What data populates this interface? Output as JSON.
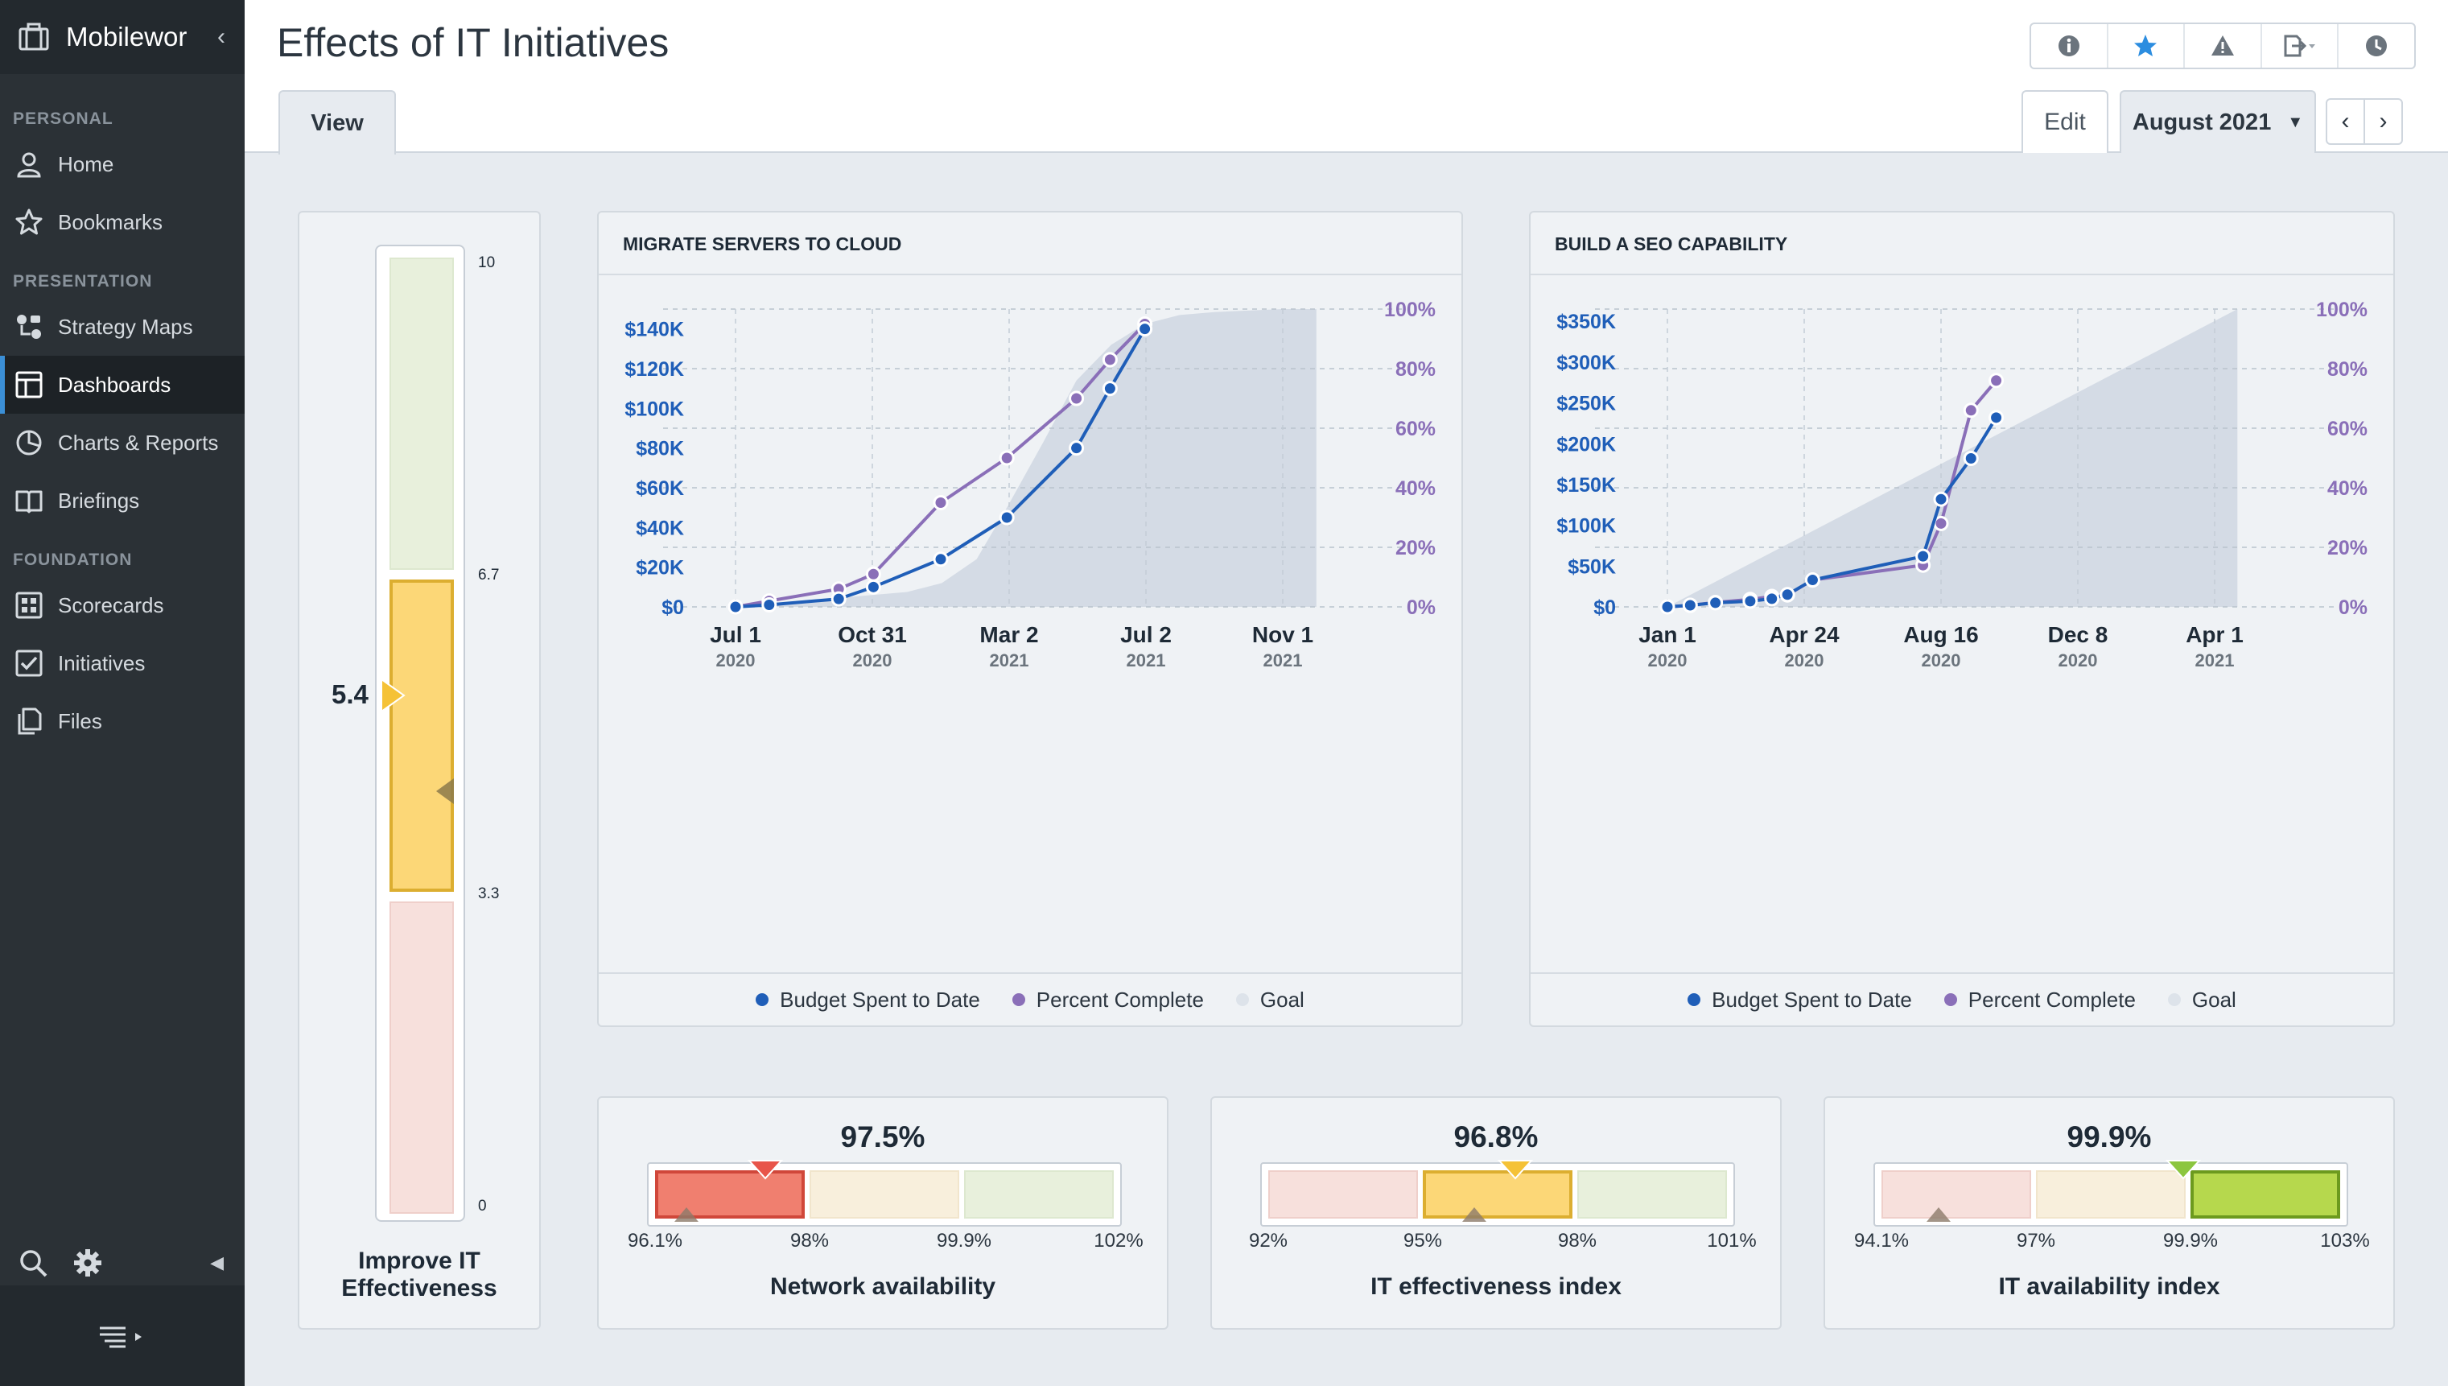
{
  "app": {
    "title": "Mobilewor"
  },
  "sidebar": {
    "sections": {
      "personal": "PERSONAL",
      "presentation": "PRESENTATION",
      "foundation": "FOUNDATION"
    },
    "items": [
      {
        "label": "Home",
        "icon": "user-icon"
      },
      {
        "label": "Bookmarks",
        "icon": "star-icon"
      },
      {
        "label": "Strategy Maps",
        "icon": "strategy-map-icon"
      },
      {
        "label": "Dashboards",
        "icon": "dashboard-icon",
        "active": true
      },
      {
        "label": "Charts & Reports",
        "icon": "pie-chart-icon"
      },
      {
        "label": "Briefings",
        "icon": "book-icon"
      },
      {
        "label": "Scorecards",
        "icon": "scorecard-icon"
      },
      {
        "label": "Initiatives",
        "icon": "checkbox-icon"
      },
      {
        "label": "Files",
        "icon": "files-icon"
      }
    ]
  },
  "header": {
    "title": "Effects of IT Initiatives",
    "tab_view": "View",
    "edit": "Edit",
    "period": "August 2021"
  },
  "colors": {
    "budget": "#1f5eb8",
    "percent": "#8a6fb8",
    "goal": "#d3dbe6",
    "red": "#f07f6f",
    "yellow": "#fcd777",
    "green": "#b6d84d"
  },
  "vertical_gauge": {
    "value": "5.4",
    "value_num": 5.4,
    "target_num": 4.4,
    "ticks": [
      "10",
      "6.7",
      "3.3",
      "0"
    ],
    "label_line1": "Improve IT",
    "label_line2": "Effectiveness"
  },
  "chart_data": [
    {
      "type": "line",
      "title": "MIGRATE SERVERS TO CLOUD",
      "x_ticks": [
        {
          "label": "Jul 1",
          "year": "2020"
        },
        {
          "label": "Oct 31",
          "year": "2020"
        },
        {
          "label": "Mar 2",
          "year": "2021"
        },
        {
          "label": "Jul 2",
          "year": "2021"
        },
        {
          "label": "Nov 1",
          "year": "2021"
        }
      ],
      "y_left_ticks": [
        "$0",
        "$20K",
        "$40K",
        "$60K",
        "$80K",
        "$100K",
        "$120K",
        "$140K"
      ],
      "y_right_ticks": [
        "0%",
        "20%",
        "40%",
        "60%",
        "80%",
        "100%"
      ],
      "ylim_left": [
        0,
        150000
      ],
      "ylim_right": [
        0,
        100
      ],
      "series": [
        {
          "name": "Budget Spent to Date",
          "axis": "left",
          "x": [
            "2020-07-01",
            "2020-07-31",
            "2020-10-01",
            "2020-11-01",
            "2020-12-31",
            "2021-02-28",
            "2021-05-01",
            "2021-05-31",
            "2021-07-01"
          ],
          "values": [
            0,
            1000,
            4000,
            10000,
            24000,
            45000,
            80000,
            110000,
            140000
          ]
        },
        {
          "name": "Percent Complete",
          "axis": "right",
          "x": [
            "2020-07-01",
            "2020-07-31",
            "2020-10-01",
            "2020-11-01",
            "2020-12-31",
            "2021-02-28",
            "2021-05-01",
            "2021-05-31",
            "2021-07-01"
          ],
          "values": [
            0,
            2,
            6,
            11,
            35,
            50,
            70,
            83,
            95
          ]
        },
        {
          "name": "Goal",
          "axis": "right",
          "x": [
            "2020-07-01",
            "2020-12-01",
            "2021-01-01",
            "2021-02-01",
            "2021-03-01",
            "2021-04-01",
            "2021-05-01",
            "2021-06-01",
            "2021-07-01",
            "2021-08-01",
            "2021-09-01",
            "2021-10-01",
            "2021-11-01",
            "2021-12-01"
          ],
          "values": [
            0,
            5,
            8,
            16,
            34,
            55,
            76,
            88,
            95,
            98,
            99,
            99.5,
            100,
            100
          ]
        }
      ]
    },
    {
      "type": "line",
      "title": "BUILD A SEO CAPABILITY",
      "x_ticks": [
        {
          "label": "Jan 1",
          "year": "2020"
        },
        {
          "label": "Apr 24",
          "year": "2020"
        },
        {
          "label": "Aug 16",
          "year": "2020"
        },
        {
          "label": "Dec 8",
          "year": "2020"
        },
        {
          "label": "Apr 1",
          "year": "2021"
        }
      ],
      "y_left_ticks": [
        "$0",
        "$50K",
        "$100K",
        "$150K",
        "$200K",
        "$250K",
        "$300K",
        "$350K"
      ],
      "y_right_ticks": [
        "0%",
        "20%",
        "40%",
        "60%",
        "80%",
        "100%"
      ],
      "ylim_left": [
        0,
        365000
      ],
      "ylim_right": [
        0,
        100
      ],
      "series": [
        {
          "name": "Budget Spent to Date",
          "axis": "left",
          "x": [
            "2020-01-01",
            "2020-01-20",
            "2020-02-10",
            "2020-03-10",
            "2020-03-28",
            "2020-04-10",
            "2020-05-01",
            "2020-08-01",
            "2020-08-16",
            "2020-09-10",
            "2020-10-01"
          ],
          "values": [
            0,
            2000,
            5000,
            7000,
            10000,
            15000,
            33000,
            62000,
            132000,
            182000,
            232000
          ]
        },
        {
          "name": "Percent Complete",
          "axis": "right",
          "x": [
            "2020-01-01",
            "2020-01-20",
            "2020-02-10",
            "2020-03-10",
            "2020-03-28",
            "2020-04-10",
            "2020-05-01",
            "2020-08-01",
            "2020-08-16",
            "2020-09-10",
            "2020-10-01"
          ],
          "values": [
            0,
            0.5,
            1.5,
            2.5,
            3.5,
            4,
            9,
            14,
            28,
            66,
            76
          ]
        },
        {
          "name": "Goal",
          "axis": "right",
          "x": [
            "2020-01-01",
            "2021-04-20"
          ],
          "values": [
            0,
            100
          ]
        }
      ]
    }
  ],
  "gauges": [
    {
      "label": "Network availability",
      "value": "97.5%",
      "value_num": 97.5,
      "target_num": 96.5,
      "ticks": [
        "96.1%",
        "98%",
        "99.9%",
        "102%"
      ],
      "active_seg": 0
    },
    {
      "label": "IT effectiveness index",
      "value": "96.8%",
      "value_num": 96.8,
      "target_num": 96.0,
      "ticks": [
        "92%",
        "95%",
        "98%",
        "101%"
      ],
      "active_seg": 1
    },
    {
      "label": "IT availability index",
      "value": "99.9%",
      "value_num": 99.9,
      "target_num": 95.2,
      "ticks": [
        "94.1%",
        "97%",
        "99.9%",
        "103%"
      ],
      "active_seg": 2
    }
  ]
}
